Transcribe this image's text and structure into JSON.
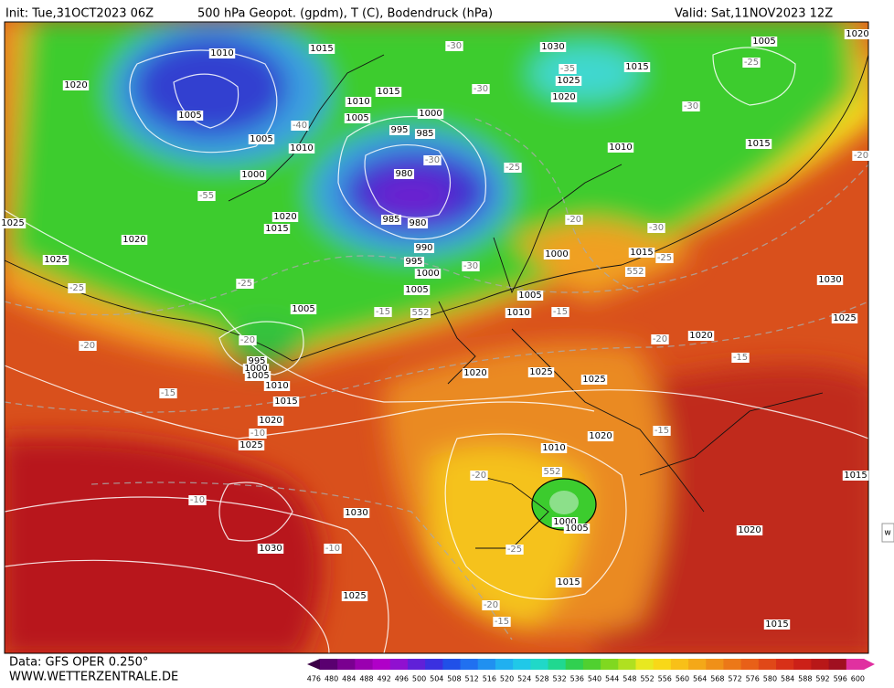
{
  "header": {
    "init": "Init: Tue,31OCT2023 06Z",
    "title": "500 hPa Geopot. (gpdm), T (C), Bodendruck (hPa)",
    "valid": "Valid: Sat,11NOV2023 12Z"
  },
  "footer": {
    "data": "Data: GFS OPER 0.250°",
    "site": "WWW.WETTERZENTRALE.DE"
  },
  "side_tab": "w",
  "colorbar": {
    "ticks": [
      476,
      480,
      484,
      488,
      492,
      496,
      500,
      504,
      508,
      512,
      516,
      520,
      524,
      528,
      532,
      536,
      540,
      544,
      548,
      552,
      556,
      560,
      564,
      568,
      572,
      576,
      580,
      584,
      588,
      592,
      596,
      600
    ]
  },
  "isobar_labels": [
    "1010",
    "1015",
    "1030",
    "1015",
    "1005",
    "1020",
    "1025",
    "1020",
    "1010",
    "1015",
    "1005",
    "1000",
    "995",
    "985",
    "1005",
    "1005",
    "1010",
    "980",
    "1000",
    "1010",
    "1015",
    "1020",
    "1015",
    "985",
    "980",
    "1020",
    "990",
    "995",
    "1000",
    "1000",
    "1015",
    "1025",
    "1005",
    "1005",
    "1010",
    "1005",
    "1030",
    "1025",
    "1020",
    "995",
    "1000",
    "1005",
    "1010",
    "1015",
    "1020",
    "1025",
    "1025",
    "1020",
    "1025",
    "1010",
    "1020",
    "1030",
    "1030",
    "1000",
    "1005",
    "1020",
    "1015",
    "1015",
    "1025",
    "1015",
    "1020",
    "1025"
  ],
  "temperature_labels": [
    "-30",
    "-35",
    "-30",
    "-30",
    "-25",
    "-40",
    "-55",
    "-30",
    "-25",
    "-20",
    "-30",
    "-25",
    "-25",
    "-25",
    "-30",
    "-15",
    "552",
    "-15",
    "-20",
    "-20",
    "-20",
    "-15",
    "-15",
    "-10",
    "-15",
    "-20",
    "552",
    "-10",
    "-10",
    "-25",
    "-20",
    "-15",
    "552",
    "-20"
  ]
}
